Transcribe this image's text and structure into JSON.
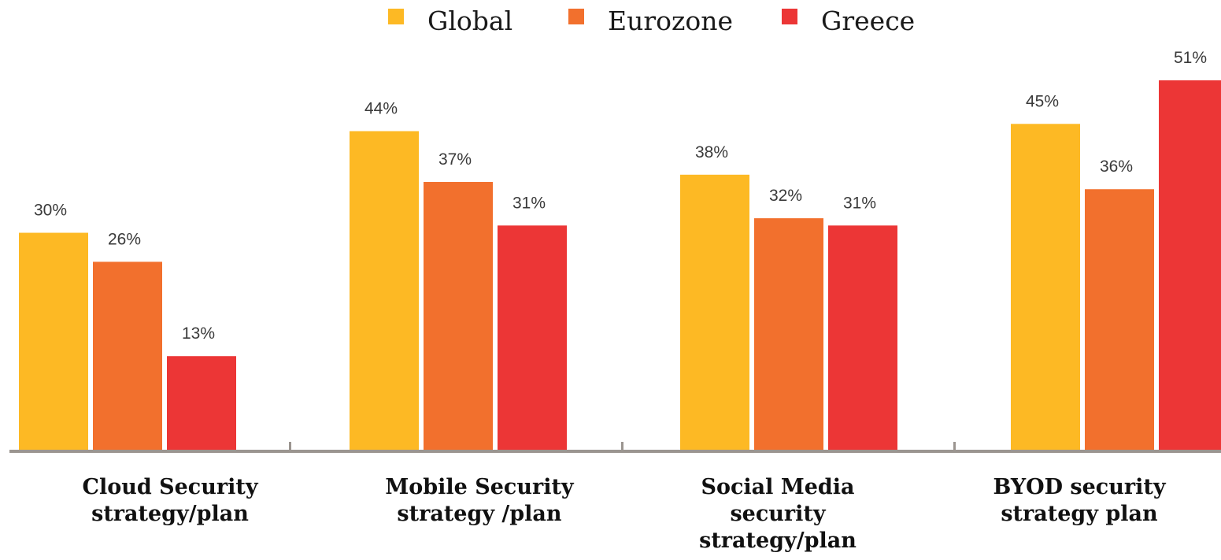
{
  "chart_data": {
    "type": "bar",
    "categories": [
      [
        "Cloud Security",
        "strategy/plan"
      ],
      [
        "Mobile Security",
        "strategy /plan"
      ],
      [
        "Social Media",
        "security",
        "strategy/plan"
      ],
      [
        "BYOD security",
        "strategy plan"
      ]
    ],
    "series": [
      {
        "name": "Global",
        "color": "#FDB924",
        "values": [
          30,
          44,
          38,
          45
        ],
        "labels": [
          "30%",
          "44%",
          "38%",
          "45%"
        ]
      },
      {
        "name": "Eurozone",
        "color": "#F2702D",
        "values": [
          26,
          37,
          32,
          36
        ],
        "labels": [
          "26%",
          "37%",
          "32%",
          "36%"
        ]
      },
      {
        "name": "Greece",
        "color": "#EC3636",
        "values": [
          13,
          31,
          31,
          51
        ],
        "labels": [
          "13%",
          "31%",
          "31%",
          "51%"
        ]
      }
    ],
    "ylim": [
      0,
      51
    ],
    "legend": "top-center",
    "grid": false,
    "axis_color": "#9B9590"
  }
}
